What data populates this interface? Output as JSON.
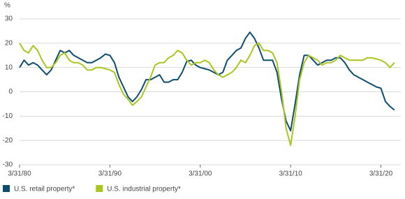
{
  "chart_data": {
    "type": "line",
    "y_label": "%",
    "x": [
      1980,
      1980.5,
      1981,
      1981.5,
      1982,
      1982.5,
      1983,
      1983.5,
      1984,
      1984.5,
      1985,
      1985.5,
      1986,
      1986.5,
      1987,
      1987.5,
      1988,
      1988.5,
      1989,
      1989.5,
      1990,
      1990.5,
      1991,
      1991.5,
      1992,
      1992.5,
      1993,
      1993.5,
      1994,
      1994.5,
      1995,
      1995.5,
      1996,
      1996.5,
      1997,
      1997.5,
      1998,
      1998.5,
      1999,
      1999.5,
      2000,
      2000.5,
      2001,
      2001.5,
      2002,
      2002.5,
      2003,
      2003.5,
      2004,
      2004.5,
      2005,
      2005.5,
      2006,
      2006.5,
      2007,
      2007.5,
      2008,
      2008.5,
      2009,
      2009.5,
      2010,
      2010.5,
      2011,
      2011.5,
      2012,
      2012.5,
      2013,
      2013.5,
      2014,
      2014.5,
      2015,
      2015.5,
      2016,
      2016.5,
      2017,
      2017.5,
      2018,
      2018.5,
      2019,
      2019.5,
      2020,
      2020.5,
      2021,
      2021.5
    ],
    "series": [
      {
        "name": "U.S. retail property*",
        "color": "#0e4d6e",
        "values": [
          10,
          13,
          11,
          12,
          11,
          9,
          7,
          9,
          13,
          17,
          16,
          17,
          15,
          14,
          13,
          12,
          12,
          13,
          14,
          15.5,
          15,
          12,
          6,
          2,
          -2,
          -4,
          -2,
          1,
          5,
          5,
          6,
          7,
          4,
          4,
          5,
          5,
          8,
          12.5,
          13,
          11,
          10,
          9.5,
          9,
          8,
          7,
          8,
          13,
          15,
          17,
          18,
          22,
          24.5,
          22,
          18,
          13,
          13,
          13,
          8,
          -3,
          -12,
          -16,
          -5,
          7,
          15,
          15,
          13,
          11,
          12,
          13,
          13,
          14,
          14,
          12,
          9,
          7,
          6,
          5,
          4,
          3,
          2,
          1.5,
          -4,
          -6,
          -7.5
        ]
      },
      {
        "name": "U.S. industrial property*",
        "color": "#a9c61f",
        "values": [
          20,
          17,
          16,
          19,
          17,
          13,
          10,
          10,
          12,
          15,
          16,
          13,
          12,
          12,
          11,
          9,
          9,
          10,
          10,
          9.5,
          9,
          8,
          3,
          -1,
          -3,
          -5.5,
          -4,
          -2,
          2,
          6,
          11,
          12,
          12,
          14,
          15,
          17,
          16,
          13,
          11,
          12,
          12,
          13,
          12,
          9,
          7,
          6,
          7,
          8,
          10,
          13,
          12,
          15,
          19,
          20,
          17,
          17,
          16,
          12,
          0,
          -15,
          -22,
          -10,
          5,
          12,
          15,
          14,
          13,
          11,
          12,
          12,
          13,
          15,
          14,
          13,
          13,
          13,
          13,
          14,
          14,
          13.5,
          13,
          12,
          10,
          12
        ]
      }
    ],
    "xlim": [
      1980,
      2022.2
    ],
    "xticks": [
      {
        "value": 1980,
        "label": "3/31/80"
      },
      {
        "value": 1990,
        "label": "3/31/90"
      },
      {
        "value": 2000,
        "label": "3/31/00"
      },
      {
        "value": 2010,
        "label": "3/31/10"
      },
      {
        "value": 2020,
        "label": "3/31/20"
      }
    ],
    "ylim": [
      -30,
      30
    ],
    "yticks": [
      -30,
      -20,
      -10,
      0,
      10,
      20,
      30
    ],
    "grid": true
  }
}
